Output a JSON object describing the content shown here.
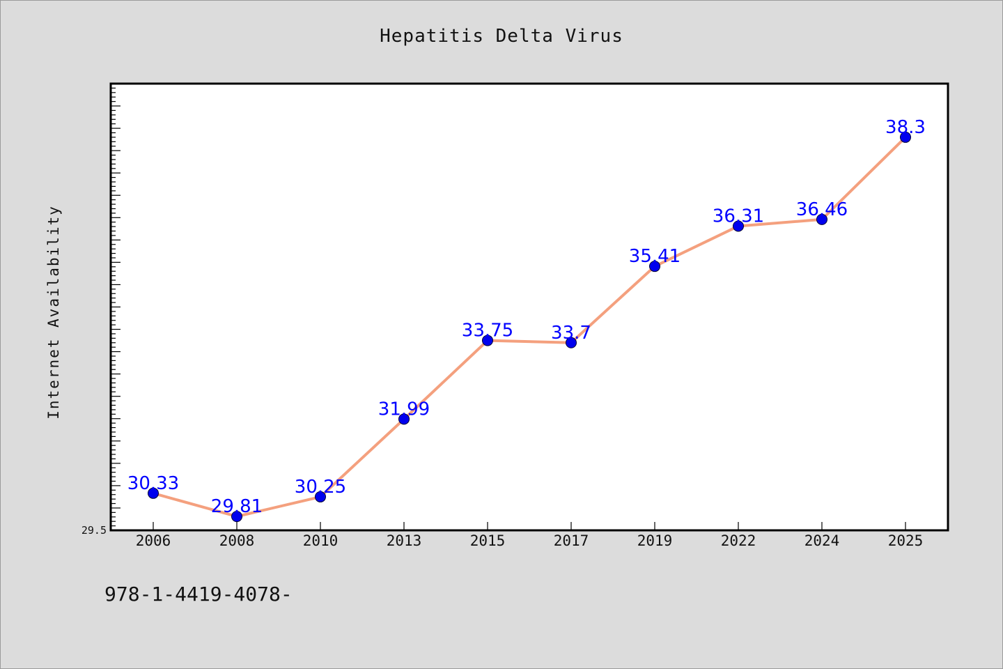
{
  "chart_data": {
    "type": "line",
    "title": "Hepatitis Delta Virus",
    "xlabel": "",
    "ylabel": "Internet Availability",
    "categories": [
      "2006",
      "2008",
      "2010",
      "2013",
      "2015",
      "2017",
      "2019",
      "2022",
      "2024",
      "2025"
    ],
    "series": [
      {
        "values": [
          30.33,
          29.81,
          30.25,
          31.99,
          33.75,
          33.7,
          35.41,
          36.31,
          36.46,
          38.3
        ],
        "labels": [
          "30.33",
          "29.81",
          "30.25",
          "31.99",
          "33.75",
          "33.7",
          "35.41",
          "36.31",
          "36.46",
          "38.3"
        ]
      }
    ],
    "ylim": [
      29.5,
      39.5
    ],
    "y_tick_labels": [
      "29.5"
    ],
    "grid": false,
    "legend": "none",
    "line_color": "#f4a07e",
    "marker_color": "#0000ee",
    "label_color": "#0000ff",
    "plot_background": "#ffffff",
    "page_background": "#dcdcdc"
  },
  "footer": {
    "text": "978-1-4419-4078-"
  }
}
